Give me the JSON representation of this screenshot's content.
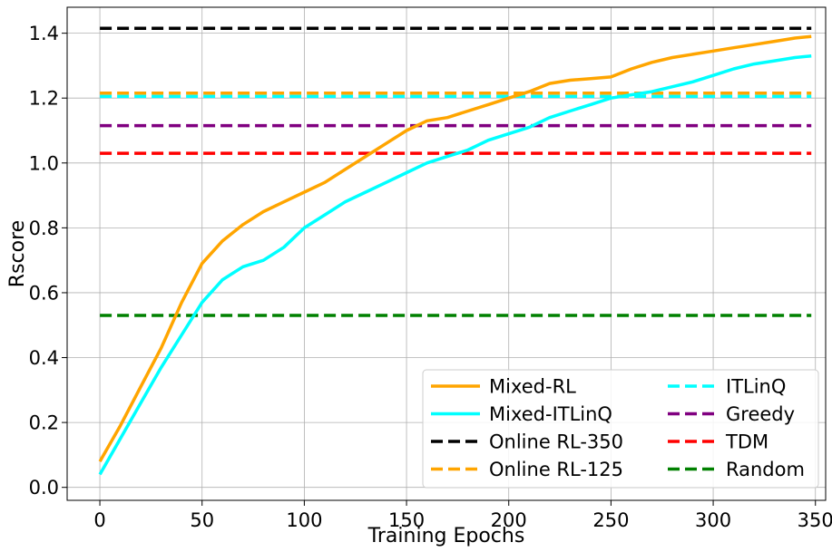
{
  "chart_data": {
    "type": "line",
    "xlabel": "Training Epochs",
    "ylabel": "Rscore",
    "xlim": [
      -16,
      355
    ],
    "ylim": [
      -0.04,
      1.48
    ],
    "xticks": [
      0,
      50,
      100,
      150,
      200,
      250,
      300,
      350
    ],
    "yticks": [
      0.0,
      0.2,
      0.4,
      0.6,
      0.8,
      1.0,
      1.2,
      1.4
    ],
    "xtick_labels": [
      "0",
      "50",
      "100",
      "150",
      "200",
      "250",
      "300",
      "350"
    ],
    "ytick_labels": [
      "0.0",
      "0.2",
      "0.4",
      "0.6",
      "0.8",
      "1.0",
      "1.2",
      "1.4"
    ],
    "grid": true,
    "legend_position": "lower-right",
    "legend_columns": 2,
    "series": [
      {
        "name": "Mixed-RL",
        "color": "#FFA500",
        "style": "solid",
        "x": [
          0,
          10,
          20,
          30,
          40,
          50,
          60,
          70,
          80,
          90,
          100,
          110,
          120,
          130,
          140,
          150,
          160,
          170,
          180,
          190,
          200,
          210,
          220,
          230,
          240,
          250,
          260,
          270,
          280,
          290,
          300,
          310,
          320,
          330,
          340,
          348
        ],
        "y": [
          0.08,
          0.19,
          0.31,
          0.43,
          0.57,
          0.69,
          0.76,
          0.81,
          0.85,
          0.88,
          0.91,
          0.94,
          0.98,
          1.02,
          1.06,
          1.1,
          1.13,
          1.14,
          1.16,
          1.18,
          1.2,
          1.22,
          1.245,
          1.255,
          1.26,
          1.265,
          1.29,
          1.31,
          1.325,
          1.335,
          1.345,
          1.355,
          1.365,
          1.375,
          1.385,
          1.39
        ]
      },
      {
        "name": "Mixed-ITLinQ",
        "color": "#00FFFF",
        "style": "solid",
        "x": [
          0,
          10,
          20,
          30,
          40,
          50,
          60,
          70,
          80,
          90,
          100,
          110,
          120,
          130,
          140,
          150,
          160,
          170,
          180,
          190,
          200,
          210,
          220,
          230,
          240,
          250,
          260,
          270,
          280,
          290,
          300,
          310,
          320,
          330,
          340,
          348
        ],
        "y": [
          0.04,
          0.15,
          0.26,
          0.37,
          0.47,
          0.57,
          0.64,
          0.68,
          0.7,
          0.74,
          0.8,
          0.84,
          0.88,
          0.91,
          0.94,
          0.97,
          1.0,
          1.02,
          1.04,
          1.07,
          1.09,
          1.11,
          1.14,
          1.16,
          1.18,
          1.2,
          1.21,
          1.22,
          1.235,
          1.25,
          1.27,
          1.29,
          1.305,
          1.315,
          1.325,
          1.33
        ]
      },
      {
        "name": "Online RL-350",
        "color": "#000000",
        "style": "dashed",
        "x": [
          0,
          348
        ],
        "y": [
          1.415,
          1.415
        ]
      },
      {
        "name": "Online RL-125",
        "color": "#FFA500",
        "style": "dashed",
        "x": [
          0,
          348
        ],
        "y": [
          1.215,
          1.215
        ]
      },
      {
        "name": "ITLinQ",
        "color": "#00FFFF",
        "style": "dashed",
        "x": [
          0,
          348
        ],
        "y": [
          1.205,
          1.205
        ]
      },
      {
        "name": "Greedy",
        "color": "#800080",
        "style": "dashed",
        "x": [
          0,
          348
        ],
        "y": [
          1.115,
          1.115
        ]
      },
      {
        "name": "TDM",
        "color": "#FF0000",
        "style": "dashed",
        "x": [
          0,
          348
        ],
        "y": [
          1.03,
          1.03
        ]
      },
      {
        "name": "Random",
        "color": "#008000",
        "style": "dashed",
        "x": [
          0,
          348
        ],
        "y": [
          0.53,
          0.53
        ]
      }
    ]
  }
}
